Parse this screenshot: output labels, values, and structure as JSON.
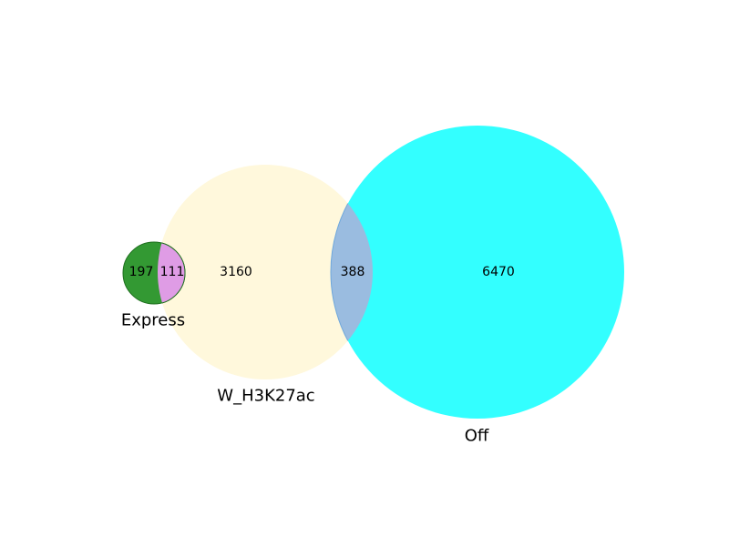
{
  "chart_data": {
    "type": "venn",
    "sets": [
      {
        "name": "Express",
        "color": "#008000"
      },
      {
        "name": "W_H3K27ac",
        "color": "#fff5d6"
      },
      {
        "name": "Off",
        "color": "#00ffff"
      }
    ],
    "regions": [
      {
        "sets": [
          "Express"
        ],
        "value": 197,
        "label": "197",
        "color": "#339933"
      },
      {
        "sets": [
          "Express",
          "W_H3K27ac"
        ],
        "value": 111,
        "label": "111",
        "color": "#df9ce5"
      },
      {
        "sets": [
          "W_H3K27ac"
        ],
        "value": 3160,
        "label": "3160",
        "color": "#fff8dc"
      },
      {
        "sets": [
          "W_H3K27ac",
          "Off"
        ],
        "value": 388,
        "label": "388",
        "color": "#9abce0"
      },
      {
        "sets": [
          "Off"
        ],
        "value": 6470,
        "label": "6470",
        "color": "#33ffff"
      }
    ]
  }
}
